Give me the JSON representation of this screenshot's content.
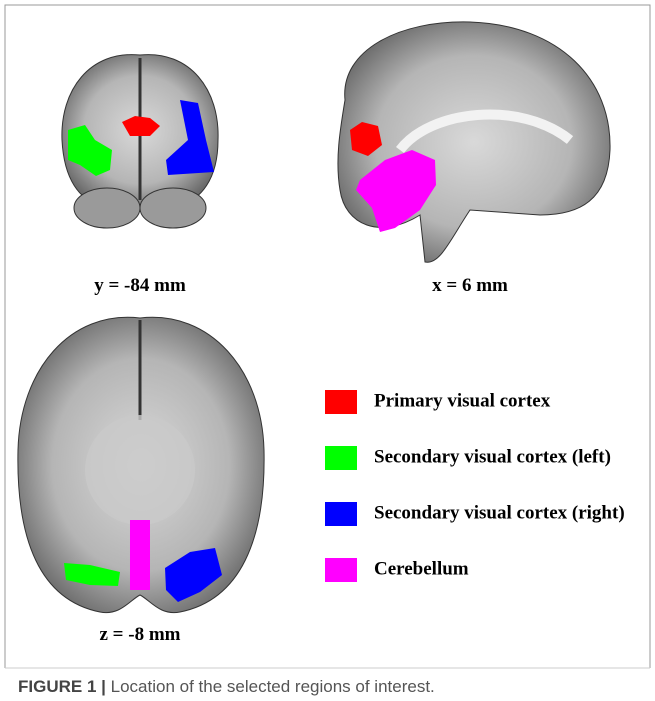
{
  "panels": [
    {
      "label": "y = -84 mm"
    },
    {
      "label": "x = 6 mm"
    },
    {
      "label": "z = -8 mm"
    }
  ],
  "legend": [
    {
      "name": "Primary visual cortex",
      "color": "#ff0000"
    },
    {
      "name": "Secondary visual cortex (left)",
      "color": "#00ff00"
    },
    {
      "name": "Secondary visual cortex (right)",
      "color": "#0000ff"
    },
    {
      "name": "Cerebellum",
      "color": "#ff00ff"
    }
  ],
  "caption": {
    "prefix": "FIGURE 1 |",
    "text": "Location of the selected regions of interest."
  }
}
